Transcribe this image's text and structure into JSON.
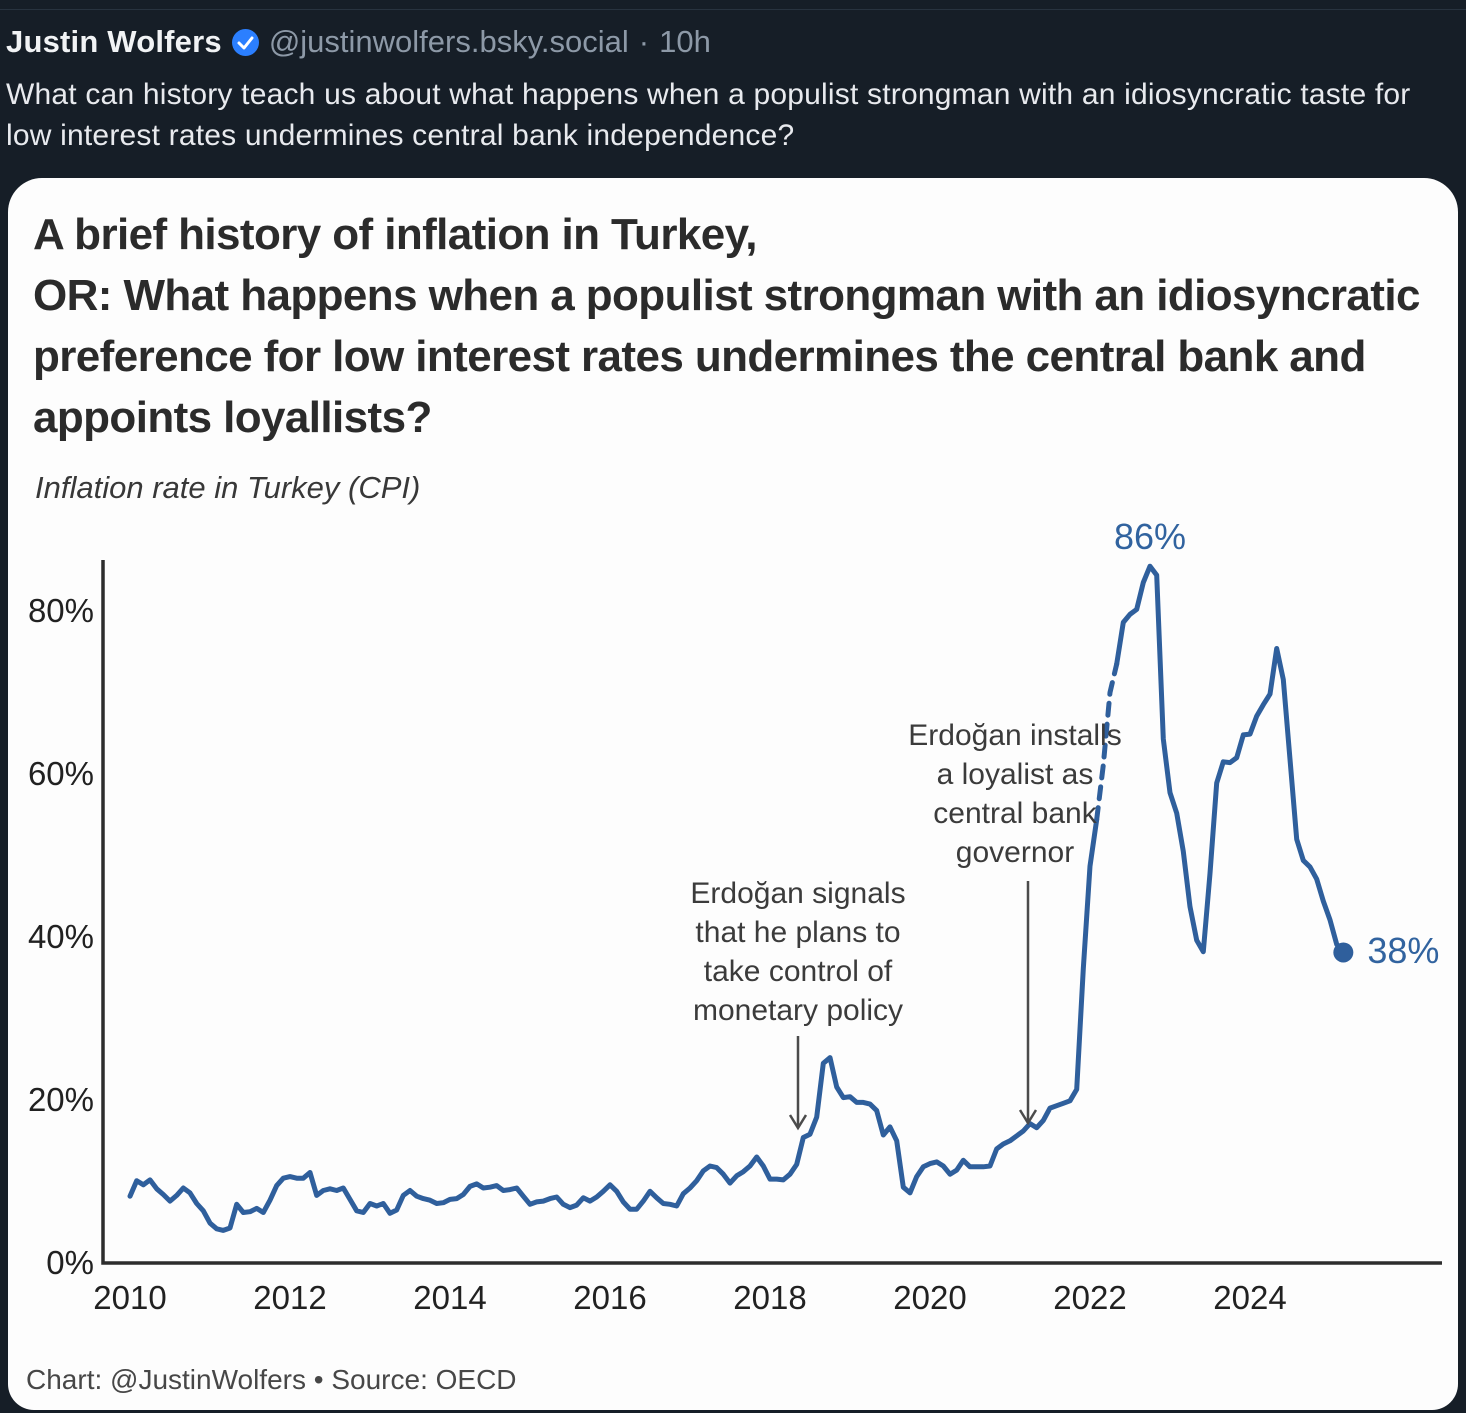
{
  "post": {
    "display_name": "Justin Wolfers",
    "verified_badge": "verified-check",
    "handle": "@justinwolfers.bsky.social",
    "separator": "·",
    "timestamp": "10h",
    "text": "What can history teach us about what happens when a populist strongman with an idiosyncratic taste for low interest rates undermines central bank independence?"
  },
  "card": {
    "title": "A brief history of inflation in Turkey,\nOR: What happens when a populist strongman with an idiosyncratic preference for low interest rates undermines the central bank and appoints loyallists?",
    "subtitle": "Inflation rate in Turkey (CPI)",
    "footer": "Chart: @JustinWolfers • Source: OECD"
  },
  "chart_data": {
    "type": "line",
    "title": "Inflation rate in Turkey (CPI)",
    "series_name": "Turkey CPI inflation rate, monthly, year-over-year %",
    "x_monthly_start": "2010-01",
    "x_monthly_end": "2025-03",
    "values": [
      8.2,
      10.1,
      9.6,
      10.2,
      9.1,
      8.4,
      7.6,
      8.3,
      9.2,
      8.6,
      7.3,
      6.4,
      4.9,
      4.2,
      4.0,
      4.3,
      7.2,
      6.2,
      6.3,
      6.7,
      6.2,
      7.7,
      9.5,
      10.4,
      10.6,
      10.4,
      10.4,
      11.1,
      8.3,
      8.9,
      9.1,
      8.9,
      9.2,
      7.8,
      6.4,
      6.2,
      7.3,
      7.0,
      7.3,
      6.1,
      6.5,
      8.3,
      8.9,
      8.2,
      7.9,
      7.7,
      7.3,
      7.4,
      7.8,
      7.9,
      8.4,
      9.4,
      9.7,
      9.2,
      9.3,
      9.5,
      8.9,
      9.0,
      9.2,
      8.2,
      7.2,
      7.5,
      7.6,
      7.9,
      8.1,
      7.2,
      6.8,
      7.1,
      8.0,
      7.6,
      8.1,
      8.8,
      9.6,
      8.8,
      7.5,
      6.6,
      6.6,
      7.6,
      8.8,
      8.0,
      7.3,
      7.2,
      7.0,
      8.5,
      9.2,
      10.1,
      11.3,
      11.9,
      11.7,
      10.9,
      9.8,
      10.7,
      11.2,
      11.9,
      13.0,
      11.9,
      10.3,
      10.3,
      10.2,
      10.9,
      12.1,
      15.4,
      15.8,
      17.9,
      24.5,
      25.2,
      21.6,
      20.3,
      20.4,
      19.7,
      19.7,
      19.5,
      18.7,
      15.7,
      16.7,
      15.0,
      9.3,
      8.6,
      10.6,
      11.8,
      12.2,
      12.4,
      11.9,
      10.9,
      11.4,
      12.6,
      11.8,
      11.8,
      11.8,
      11.9,
      14.0,
      14.6,
      15.0,
      15.6,
      16.2,
      17.1,
      16.6,
      17.5,
      19.0,
      19.3,
      19.6,
      19.9,
      21.3,
      36.1,
      48.7,
      54.4,
      61.1,
      70.0,
      73.5,
      78.6,
      79.6,
      80.2,
      83.5,
      85.5,
      84.4,
      64.3,
      57.7,
      55.2,
      50.5,
      43.7,
      39.6,
      38.2,
      47.8,
      58.9,
      61.5,
      61.4,
      62.0,
      64.8,
      64.9,
      67.1,
      68.5,
      69.8,
      75.4,
      71.6,
      61.8,
      52.0,
      49.4,
      48.6,
      47.1,
      44.4,
      42.1,
      39.1,
      38.1
    ],
    "dashed_segment_indices": [
      145,
      148
    ],
    "ylim": [
      0,
      88
    ],
    "xlim": [
      2010,
      2025.4
    ],
    "grid": "off",
    "legend": "none",
    "line_color": "#2f5f9c",
    "y_axis": {
      "ticks": [
        {
          "label": "0%",
          "value": 0
        },
        {
          "label": "20%",
          "value": 20
        },
        {
          "label": "40%",
          "value": 40
        },
        {
          "label": "60%",
          "value": 60
        },
        {
          "label": "80%",
          "value": 80
        }
      ]
    },
    "x_axis": {
      "ticks": [
        {
          "label": "2010",
          "value": 2010
        },
        {
          "label": "2012",
          "value": 2012
        },
        {
          "label": "2014",
          "value": 2014
        },
        {
          "label": "2016",
          "value": 2016
        },
        {
          "label": "2018",
          "value": 2018
        },
        {
          "label": "2020",
          "value": 2020
        },
        {
          "label": "2022",
          "value": 2022
        },
        {
          "label": "2024",
          "value": 2024
        }
      ]
    },
    "annotations": {
      "peak_value_label": "86%",
      "end_value_label": "38%",
      "signal": {
        "line1": "Erdoğan signals",
        "line2": "that he plans to",
        "line3": "take control of",
        "line4": "monetary policy"
      },
      "install": {
        "line1": "Erdoğan installs",
        "line2": "a loyalist as",
        "line3": "central bank",
        "line4": "governor"
      }
    }
  }
}
